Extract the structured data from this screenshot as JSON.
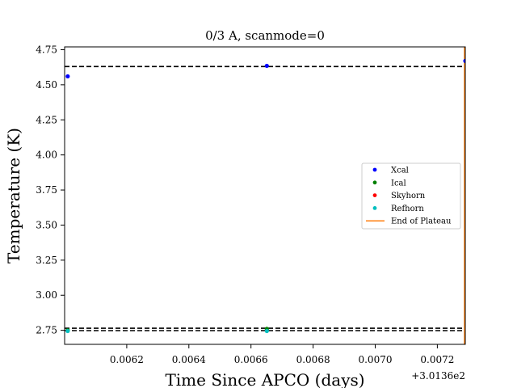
{
  "chart_data": {
    "type": "scatter",
    "title": "0/3 A, scanmode=0",
    "xlabel": "Time Since APCO (days)",
    "ylabel": "Temperature (K)",
    "x_offset_label": "+3.0136e2",
    "xlim": [
      0.006,
      0.00729
    ],
    "ylim": [
      2.65,
      4.77
    ],
    "x_ticks": [
      0.0062,
      0.0064,
      0.0066,
      0.0068,
      0.007,
      0.0072
    ],
    "x_tick_labels": [
      "0.0062",
      "0.0064",
      "0.0066",
      "0.0068",
      "0.0070",
      "0.0072"
    ],
    "y_ticks": [
      2.75,
      3.0,
      3.25,
      3.5,
      3.75,
      4.0,
      4.25,
      4.5,
      4.75
    ],
    "y_tick_labels": [
      "2.75",
      "3.00",
      "3.25",
      "3.50",
      "3.75",
      "4.00",
      "4.25",
      "4.50",
      "4.75"
    ],
    "grid": false,
    "legend_position": "center-right",
    "series": [
      {
        "name": "Xcal",
        "color": "#0000ff",
        "points": [
          [
            0.00601,
            4.56
          ],
          [
            0.006651,
            4.635
          ],
          [
            0.00729,
            4.67
          ]
        ]
      },
      {
        "name": "Ical",
        "color": "#008000",
        "points": [
          [
            0.00601,
            2.75
          ],
          [
            0.006651,
            2.76
          ]
        ]
      },
      {
        "name": "Skyhorn",
        "color": "#ff0000",
        "points": []
      },
      {
        "name": "Refhorn",
        "color": "#00bfbf",
        "points": [
          [
            0.00601,
            2.745
          ],
          [
            0.006651,
            2.745
          ]
        ]
      }
    ],
    "hlines": [
      {
        "y": 4.63,
        "color": "#000000",
        "style": "dashed"
      },
      {
        "y": 2.765,
        "color": "#000000",
        "style": "dashed"
      },
      {
        "y": 2.748,
        "color": "#000000",
        "style": "dashed"
      }
    ],
    "vlines": [
      {
        "name": "End of Plateau",
        "x": 0.00729,
        "color": "#ff7f0e",
        "style": "solid"
      }
    ]
  }
}
